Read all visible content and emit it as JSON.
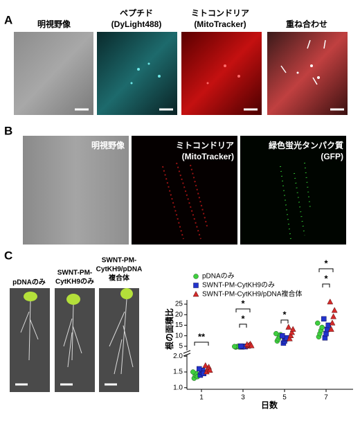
{
  "panel_a": {
    "label": "A",
    "images": [
      {
        "title": [
          "明視野像"
        ]
      },
      {
        "title": [
          "ペプチド",
          "(DyLight488)"
        ]
      },
      {
        "title": [
          "ミトコンドリア",
          "(MitoTracker)"
        ]
      },
      {
        "title": [
          "重ね合わせ"
        ]
      }
    ]
  },
  "panel_b": {
    "label": "B",
    "images": [
      {
        "title": [
          "明視野像"
        ]
      },
      {
        "title": [
          "ミトコンドリア",
          "(MitoTracker)"
        ]
      },
      {
        "title": [
          "緑色蛍光タンパク質",
          "(GFP)"
        ]
      }
    ]
  },
  "panel_c": {
    "label": "C",
    "plants": [
      {
        "title": [
          "pDNAのみ"
        ]
      },
      {
        "title": [
          "SWNT-PM-",
          "CytKH9のみ"
        ]
      },
      {
        "title": [
          "SWNT-PM-",
          "CytKH9/pDNA",
          "複合体"
        ]
      }
    ]
  },
  "chart_data": {
    "type": "scatter",
    "y_label": "根の面積比",
    "x_label": "日数",
    "xlim": [
      0.3,
      8.3
    ],
    "xticks": [
      1,
      3,
      5,
      7
    ],
    "y_segments": [
      {
        "ylim": [
          0.95,
          2.05
        ],
        "yticks": [
          {
            "value": 1.0,
            "label": "1.0"
          },
          {
            "value": 1.5,
            "label": "1.5"
          },
          {
            "value": 2.0,
            "label": "2.0"
          }
        ]
      },
      {
        "ylim": [
          3,
          27
        ],
        "yticks": [
          5,
          10,
          15,
          20,
          25
        ]
      }
    ],
    "series": [
      {
        "name": "pDNAのみ",
        "color": "#3ecf3e",
        "marker": "circle",
        "x": [
          1,
          1,
          1,
          1,
          1,
          3,
          3,
          3,
          3,
          3,
          5,
          5,
          5,
          5,
          5,
          7,
          7,
          7,
          7,
          7
        ],
        "values": [
          1.3,
          1.4,
          1.45,
          1.35,
          1.5,
          4.6,
          4.8,
          5.0,
          4.7,
          4.9,
          7.5,
          8.5,
          9.5,
          10.5,
          11,
          9.5,
          11,
          12.5,
          14,
          16
        ]
      },
      {
        "name": "SWNT-PM-CytKH9のみ",
        "color": "#2233cc",
        "marker": "square",
        "x": [
          1,
          1,
          1,
          1,
          1,
          3,
          3,
          3,
          3,
          3,
          5,
          5,
          5,
          5,
          5,
          7,
          7,
          7,
          7,
          7
        ],
        "values": [
          1.4,
          1.5,
          1.55,
          1.45,
          1.6,
          4.7,
          4.9,
          5.0,
          4.8,
          5.1,
          6.5,
          7.5,
          8.5,
          9,
          10,
          9,
          11,
          13,
          15,
          18
        ]
      },
      {
        "name": "SWNT-PM-CytKH9/pDNA複合体",
        "color": "#d42a2a",
        "marker": "triangle",
        "x": [
          1,
          1,
          1,
          1,
          1,
          3,
          3,
          3,
          3,
          3,
          5,
          5,
          5,
          5,
          5,
          7,
          7,
          7,
          7,
          7
        ],
        "values": [
          1.5,
          1.6,
          1.65,
          1.55,
          1.7,
          5.0,
          5.5,
          6.0,
          5.2,
          5.8,
          8.5,
          10,
          11.5,
          13,
          14,
          13,
          16,
          19,
          22,
          26
        ]
      }
    ],
    "annotations": [
      {
        "x": 1,
        "text": "**"
      },
      {
        "x": 3,
        "text": "*"
      },
      {
        "x": 3,
        "text": "*"
      },
      {
        "x": 5,
        "text": "*"
      },
      {
        "x": 7,
        "text": "*"
      },
      {
        "x": 7,
        "text": "*"
      }
    ]
  }
}
